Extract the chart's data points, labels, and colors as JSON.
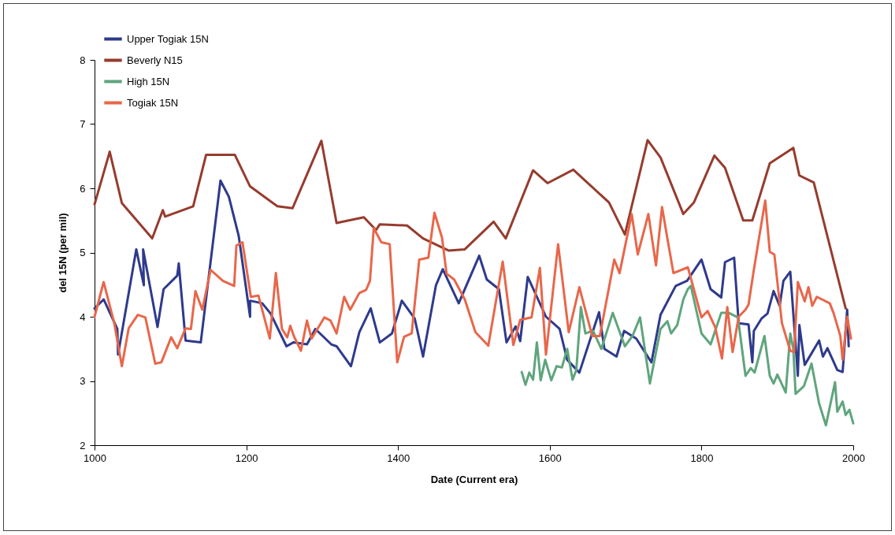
{
  "chart_data": {
    "type": "line",
    "xlabel": "Date (Current era)",
    "ylabel": "del 15N (per mil)",
    "xlim": [
      1000,
      2000
    ],
    "ylim": [
      2,
      8
    ],
    "xticks": [
      1000,
      1200,
      1400,
      1600,
      1800,
      2000
    ],
    "yticks": [
      2,
      3,
      4,
      5,
      6,
      7,
      8
    ],
    "legend": "top left",
    "line_style": "solid",
    "series": [
      {
        "name": "Upper Togiak 15N",
        "color": "#2e3a8c",
        "x": [
          1000,
          1012,
          1030,
          1031,
          1055,
          1065,
          1064,
          1083,
          1091,
          1109,
          1111,
          1120,
          1140,
          1166,
          1177,
          1190,
          1205,
          1205,
          1221,
          1232,
          1253,
          1262,
          1280,
          1291,
          1312,
          1319,
          1338,
          1349,
          1364,
          1376,
          1392,
          1405,
          1422,
          1433,
          1450,
          1459,
          1480,
          1507,
          1517,
          1533,
          1543,
          1555,
          1561,
          1571,
          1595,
          1613,
          1623,
          1639,
          1665,
          1672,
          1688,
          1698,
          1714,
          1734,
          1746,
          1766,
          1781,
          1800,
          1812,
          1826,
          1831,
          1843,
          1849,
          1862,
          1867,
          1869,
          1879,
          1887,
          1895,
          1903,
          1908,
          1917,
          1927,
          1929,
          1936,
          1955,
          1960,
          1966,
          1979,
          1986,
          1992,
          1994
        ],
        "values": [
          4.13,
          4.27,
          3.81,
          3.41,
          5.05,
          4.49,
          5.05,
          3.84,
          4.43,
          4.64,
          4.83,
          3.63,
          3.6,
          6.12,
          5.87,
          5.26,
          4.0,
          4.25,
          4.21,
          4.05,
          3.54,
          3.6,
          3.57,
          3.81,
          3.57,
          3.54,
          3.23,
          3.76,
          4.13,
          3.6,
          3.74,
          4.25,
          3.97,
          3.38,
          4.49,
          4.74,
          4.21,
          4.95,
          4.58,
          4.43,
          3.6,
          3.85,
          3.62,
          4.62,
          4.0,
          3.81,
          3.33,
          3.13,
          4.07,
          3.5,
          3.38,
          3.78,
          3.66,
          3.29,
          4.03,
          4.48,
          4.56,
          4.89,
          4.43,
          4.3,
          4.85,
          4.92,
          3.9,
          3.88,
          3.29,
          3.78,
          3.97,
          4.05,
          4.4,
          4.17,
          4.56,
          4.7,
          3.08,
          3.87,
          3.25,
          3.63,
          3.38,
          3.51,
          3.17,
          3.14,
          4.11,
          3.54
        ]
      },
      {
        "name": "Beverly N15",
        "color": "#963c2e",
        "x": [
          1000,
          1020,
          1036,
          1076,
          1090,
          1093,
          1130,
          1147,
          1185,
          1205,
          1241,
          1261,
          1299,
          1319,
          1355,
          1371,
          1376,
          1412,
          1433,
          1467,
          1488,
          1526,
          1542,
          1578,
          1597,
          1631,
          1678,
          1699,
          1729,
          1746,
          1776,
          1790,
          1817,
          1831,
          1855,
          1867,
          1890,
          1921,
          1929,
          1948,
          1990
        ],
        "values": [
          5.75,
          6.57,
          5.77,
          5.22,
          5.66,
          5.56,
          5.72,
          6.52,
          6.52,
          6.03,
          5.72,
          5.69,
          6.74,
          5.46,
          5.55,
          5.35,
          5.44,
          5.42,
          5.22,
          5.03,
          5.05,
          5.48,
          5.22,
          6.28,
          6.08,
          6.29,
          5.78,
          5.28,
          6.75,
          6.48,
          5.6,
          5.78,
          6.51,
          6.32,
          5.5,
          5.5,
          6.39,
          6.63,
          6.2,
          6.09,
          4.13
        ]
      },
      {
        "name": "High 15N",
        "color": "#5fa57d",
        "x": [
          1563,
          1568,
          1573,
          1578,
          1583,
          1588,
          1594,
          1602,
          1609,
          1616,
          1623,
          1630,
          1635,
          1641,
          1647,
          1657,
          1668,
          1683,
          1699,
          1709,
          1719,
          1732,
          1746,
          1755,
          1760,
          1768,
          1776,
          1782,
          1786,
          1800,
          1812,
          1826,
          1836,
          1848,
          1858,
          1865,
          1870,
          1883,
          1890,
          1895,
          1900,
          1911,
          1917,
          1921,
          1924,
          1935,
          1945,
          1955,
          1964,
          1969,
          1976,
          1979,
          1986,
          1990,
          1995,
          2000
        ],
        "values": [
          3.14,
          2.94,
          3.13,
          3.02,
          3.6,
          3.01,
          3.33,
          3.01,
          3.23,
          3.21,
          3.5,
          3.02,
          3.17,
          4.15,
          3.74,
          3.78,
          3.5,
          4.06,
          3.54,
          3.7,
          3.99,
          2.96,
          3.81,
          3.93,
          3.74,
          3.87,
          4.27,
          4.43,
          4.48,
          3.74,
          3.57,
          4.06,
          4.06,
          3.99,
          3.08,
          3.2,
          3.13,
          3.7,
          3.08,
          2.96,
          3.1,
          2.82,
          3.74,
          3.5,
          2.8,
          2.92,
          3.27,
          2.65,
          2.31,
          2.59,
          2.98,
          2.52,
          2.68,
          2.47,
          2.55,
          2.34
        ]
      },
      {
        "name": "Togiak 15N",
        "color": "#e8674a",
        "x": [
          1000,
          1012,
          1026,
          1036,
          1045,
          1057,
          1067,
          1080,
          1088,
          1101,
          1109,
          1120,
          1127,
          1133,
          1142,
          1153,
          1169,
          1184,
          1187,
          1195,
          1206,
          1216,
          1231,
          1239,
          1247,
          1254,
          1258,
          1263,
          1272,
          1280,
          1286,
          1303,
          1311,
          1319,
          1329,
          1337,
          1349,
          1358,
          1363,
          1368,
          1378,
          1389,
          1399,
          1408,
          1418,
          1428,
          1440,
          1448,
          1458,
          1464,
          1474,
          1488,
          1502,
          1519,
          1538,
          1552,
          1561,
          1576,
          1587,
          1595,
          1611,
          1625,
          1639,
          1656,
          1666,
          1685,
          1692,
          1708,
          1716,
          1730,
          1740,
          1748,
          1755,
          1763,
          1782,
          1800,
          1808,
          1818,
          1827,
          1834,
          1841,
          1849,
          1858,
          1862,
          1869,
          1875,
          1884,
          1890,
          1896,
          1906,
          1917,
          1922,
          1927,
          1936,
          1941,
          1946,
          1952,
          1969,
          1974,
          1983,
          1986,
          1992,
          1997
        ],
        "values": [
          4.0,
          4.54,
          3.9,
          3.23,
          3.82,
          4.03,
          3.99,
          3.27,
          3.29,
          3.68,
          3.51,
          3.82,
          3.81,
          4.4,
          4.11,
          4.73,
          4.56,
          4.48,
          5.11,
          5.16,
          4.31,
          4.33,
          3.66,
          4.68,
          3.81,
          3.68,
          3.86,
          3.69,
          3.47,
          3.94,
          3.66,
          3.99,
          3.94,
          3.74,
          4.31,
          4.11,
          4.37,
          4.42,
          4.56,
          5.38,
          5.16,
          5.13,
          3.29,
          3.69,
          3.74,
          4.89,
          4.92,
          5.62,
          5.23,
          4.67,
          4.58,
          4.27,
          3.76,
          3.55,
          4.86,
          3.56,
          3.95,
          3.99,
          4.76,
          3.41,
          5.13,
          3.76,
          4.46,
          3.7,
          3.7,
          4.89,
          4.68,
          5.6,
          4.97,
          5.6,
          4.8,
          5.71,
          5.22,
          4.68,
          4.77,
          3.99,
          4.09,
          3.84,
          3.35,
          4.15,
          3.45,
          4.0,
          4.11,
          4.19,
          4.73,
          5.17,
          5.81,
          5.01,
          4.97,
          3.9,
          3.47,
          3.45,
          4.54,
          4.24,
          4.46,
          4.17,
          4.31,
          4.21,
          4.06,
          3.7,
          3.33,
          4.0,
          3.66
        ]
      }
    ]
  }
}
